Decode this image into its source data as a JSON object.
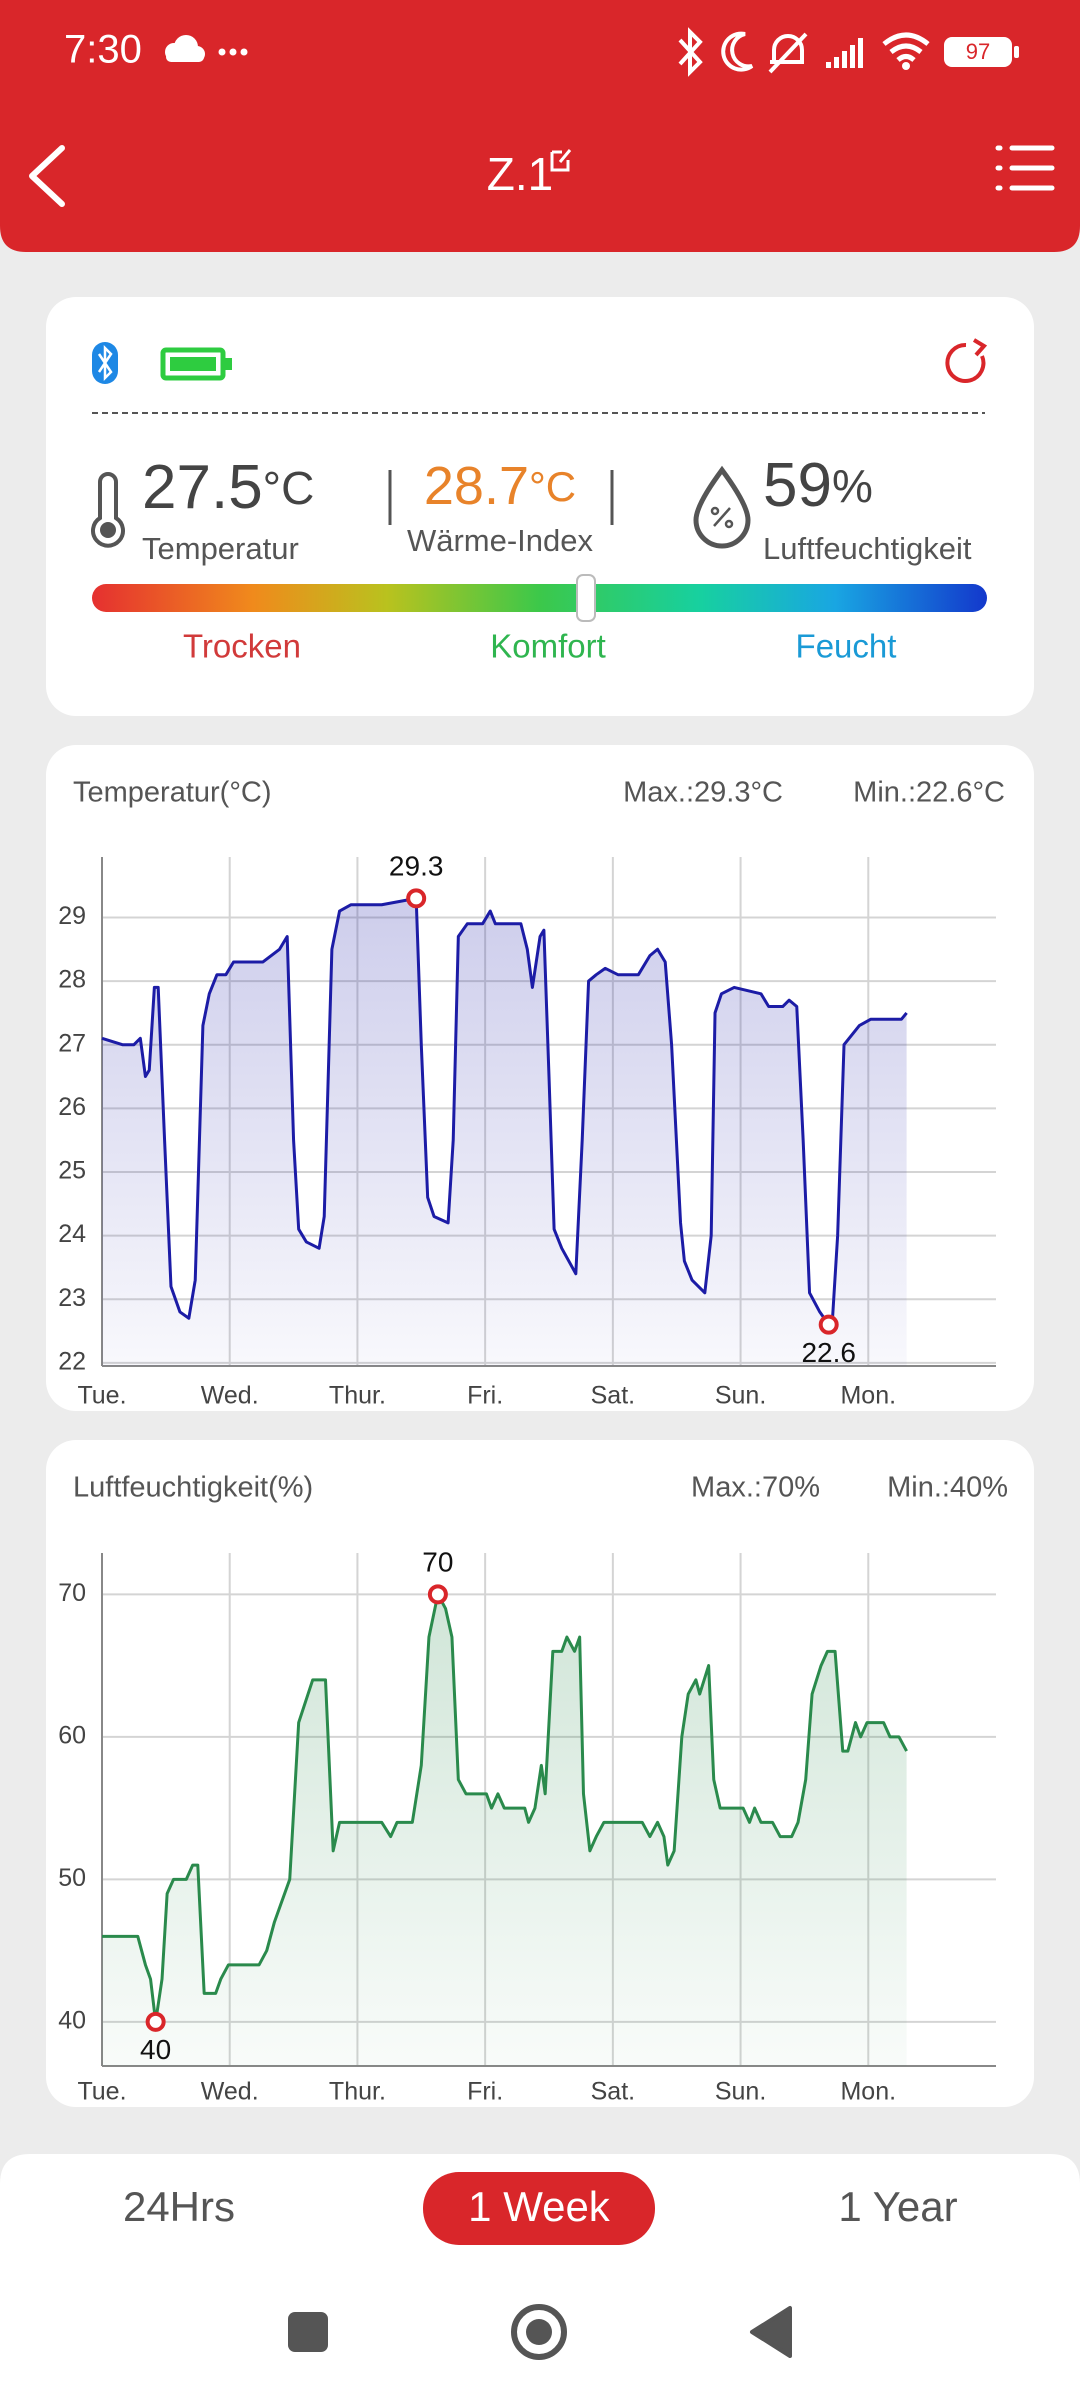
{
  "status_bar": {
    "time": "7:30",
    "battery": 97
  },
  "header": {
    "title": "Z.1"
  },
  "summary": {
    "temperature": {
      "value": 27.5,
      "unit": "°C",
      "label": "Temperatur"
    },
    "heat_index": {
      "value": 28.7,
      "unit": "°C",
      "label": "Wärme-Index"
    },
    "humidity": {
      "value": 59,
      "unit": "%",
      "label": "Luftfeuchtigkeit"
    },
    "comfort_labels": [
      "Trocken",
      "Komfort",
      "Feucht"
    ]
  },
  "chart_data": [
    {
      "type": "line",
      "title": "Temperatur(°C)",
      "max_label": "Max.:29.3°C",
      "min_label": "Min.:22.6°C",
      "color": "#1c1ca6",
      "marker_color": "#d9262a",
      "grid": true,
      "xlim": [
        0,
        7
      ],
      "xticks": [
        {
          "value": 0,
          "label": "Tue."
        },
        {
          "value": 1,
          "label": "Wed."
        },
        {
          "value": 2,
          "label": "Thur."
        },
        {
          "value": 3,
          "label": "Fri."
        },
        {
          "value": 4,
          "label": "Sat."
        },
        {
          "value": 5,
          "label": "Sun."
        },
        {
          "value": 6,
          "label": "Mon."
        }
      ],
      "ylim": [
        21.95,
        29.95
      ],
      "yticks": [
        22,
        23,
        24,
        25,
        26,
        27,
        28,
        29
      ],
      "x": [
        0,
        0.16,
        0.25,
        0.3,
        0.34,
        0.37,
        0.41,
        0.44,
        0.49,
        0.54,
        0.61,
        0.68,
        0.73,
        0.79,
        0.84,
        0.9,
        0.97,
        1.03,
        1.26,
        1.39,
        1.45,
        1.5,
        1.54,
        1.6,
        1.7,
        1.74,
        1.8,
        1.86,
        1.95,
        2.19,
        2.46,
        2.5,
        2.55,
        2.6,
        2.71,
        2.75,
        2.79,
        2.86,
        2.98,
        3.04,
        3.08,
        3.28,
        3.33,
        3.37,
        3.43,
        3.46,
        3.5,
        3.54,
        3.6,
        3.71,
        3.76,
        3.81,
        3.87,
        3.94,
        4.04,
        4.2,
        4.29,
        4.35,
        4.41,
        4.46,
        4.53,
        4.56,
        4.62,
        4.72,
        4.77,
        4.8,
        4.85,
        4.95,
        5.16,
        5.22,
        5.33,
        5.38,
        5.44,
        5.49,
        5.54,
        5.62,
        5.69,
        5.72,
        5.76,
        5.81,
        5.93,
        6.02,
        6.26,
        6.3
      ],
      "values": [
        27.1,
        27.0,
        27.0,
        27.1,
        26.5,
        26.6,
        27.9,
        27.9,
        25.5,
        23.2,
        22.8,
        22.7,
        23.3,
        27.3,
        27.8,
        28.1,
        28.1,
        28.3,
        28.3,
        28.5,
        28.7,
        25.5,
        24.1,
        23.9,
        23.8,
        24.3,
        28.5,
        29.1,
        29.2,
        29.2,
        29.3,
        27.0,
        24.6,
        24.3,
        24.2,
        25.5,
        28.7,
        28.9,
        28.9,
        29.1,
        28.9,
        28.9,
        28.5,
        27.9,
        28.7,
        28.8,
        26.5,
        24.1,
        23.8,
        23.4,
        25.5,
        28.0,
        28.1,
        28.2,
        28.1,
        28.1,
        28.4,
        28.5,
        28.3,
        27.0,
        24.2,
        23.6,
        23.3,
        23.1,
        24.0,
        27.5,
        27.8,
        27.9,
        27.8,
        27.6,
        27.6,
        27.7,
        27.6,
        25.5,
        23.1,
        22.8,
        22.6,
        22.7,
        24.0,
        27.0,
        27.3,
        27.4,
        27.4,
        27.5
      ],
      "markers": [
        {
          "x": 2.46,
          "value": 29.3
        },
        {
          "x": 5.69,
          "value": 22.6
        }
      ]
    },
    {
      "type": "line",
      "title": "Luftfeuchtigkeit(%)",
      "max_label": "Max.:70%",
      "min_label": "Min.:40%",
      "color": "#2a8a4c",
      "marker_color": "#d9262a",
      "grid": true,
      "xlim": [
        0,
        7
      ],
      "xticks": [
        {
          "value": 0,
          "label": "Tue."
        },
        {
          "value": 1,
          "label": "Wed."
        },
        {
          "value": 2,
          "label": "Thur."
        },
        {
          "value": 3,
          "label": "Fri."
        },
        {
          "value": 4,
          "label": "Sat."
        },
        {
          "value": 5,
          "label": "Sun."
        },
        {
          "value": 6,
          "label": "Mon."
        }
      ],
      "ylim": [
        36.9,
        72.9
      ],
      "yticks": [
        40,
        50,
        60,
        70
      ],
      "x": [
        0,
        0.28,
        0.34,
        0.38,
        0.42,
        0.47,
        0.51,
        0.56,
        0.66,
        0.71,
        0.75,
        0.8,
        0.89,
        0.93,
        0.99,
        1.23,
        1.29,
        1.35,
        1.47,
        1.54,
        1.65,
        1.75,
        1.81,
        1.86,
        2.19,
        2.26,
        2.31,
        2.43,
        2.5,
        2.56,
        2.63,
        2.69,
        2.74,
        2.79,
        2.85,
        3.01,
        3.05,
        3.1,
        3.15,
        3.31,
        3.34,
        3.39,
        3.44,
        3.47,
        3.53,
        3.6,
        3.64,
        3.7,
        3.74,
        3.77,
        3.82,
        3.87,
        3.93,
        4.23,
        4.29,
        4.35,
        4.4,
        4.43,
        4.48,
        4.54,
        4.59,
        4.65,
        4.68,
        4.75,
        4.79,
        4.84,
        5.02,
        5.07,
        5.11,
        5.16,
        5.25,
        5.31,
        5.4,
        5.45,
        5.51,
        5.56,
        5.63,
        5.68,
        5.74,
        5.8,
        5.84,
        5.9,
        5.94,
        5.99,
        6.12,
        6.17,
        6.24,
        6.3
      ],
      "values": [
        46,
        46,
        44,
        43,
        40,
        43,
        49,
        50,
        50,
        51,
        51,
        42,
        42,
        43,
        44,
        44,
        45,
        47,
        50,
        61,
        64,
        64,
        52,
        54,
        54,
        53,
        54,
        54,
        58,
        67,
        70,
        69,
        67,
        57,
        56,
        56,
        55,
        56,
        55,
        55,
        54,
        55,
        58,
        56,
        66,
        66,
        67,
        66,
        67,
        56,
        52,
        53,
        54,
        54,
        53,
        54,
        53,
        51,
        52,
        60,
        63,
        64,
        63,
        65,
        57,
        55,
        55,
        54,
        55,
        54,
        54,
        53,
        53,
        54,
        57,
        63,
        65,
        66,
        66,
        59,
        59,
        61,
        60,
        61,
        61,
        60,
        60,
        59
      ],
      "markers": [
        {
          "x": 2.63,
          "value": 70
        },
        {
          "x": 0.42,
          "value": 40
        }
      ]
    }
  ],
  "tabs": {
    "items": [
      "24Hrs",
      "1 Week",
      "1 Year"
    ],
    "active": 1
  }
}
